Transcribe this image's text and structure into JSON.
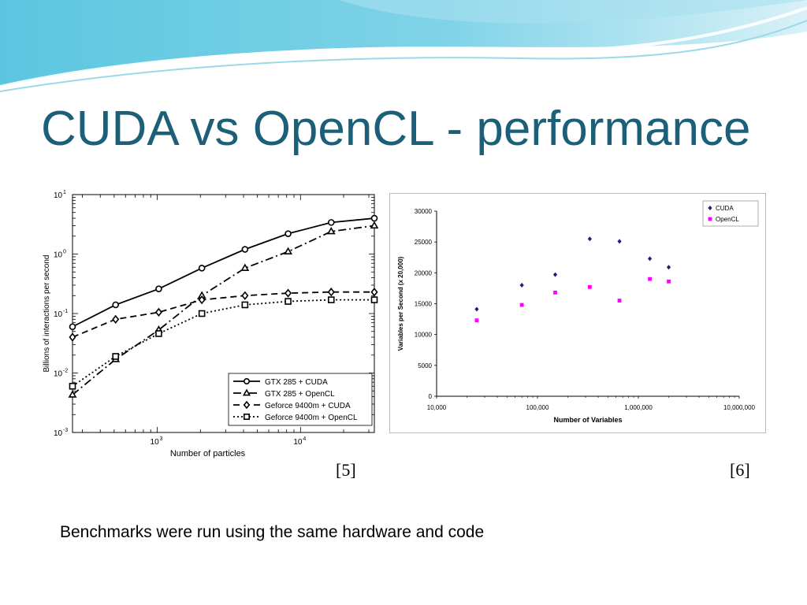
{
  "slide": {
    "title": "CUDA vs OpenCL - performance",
    "ref_left": "[5]",
    "ref_right": "[6]",
    "footnote": "Benchmarks were run using the same hardware and code",
    "colors": {
      "title": "#1b5f79",
      "banner_dark": "#5fc3df",
      "banner_light": "#c9ecf5"
    }
  },
  "chart_data": [
    {
      "type": "line",
      "xlabel": "Number of particles",
      "ylabel": "Billions of interactions per second",
      "xscale": "log",
      "yscale": "log",
      "xlim": [
        256,
        32768
      ],
      "ylim": [
        0.001,
        10
      ],
      "x_ticks": [
        {
          "base": "10",
          "exp": "3",
          "value": 1000
        },
        {
          "base": "10",
          "exp": "4",
          "value": 10000
        }
      ],
      "y_ticks": [
        {
          "base": "10",
          "exp": "1",
          "value": 10
        },
        {
          "base": "10",
          "exp": "0",
          "value": 1
        },
        {
          "base": "10",
          "exp": "-1",
          "value": 0.1
        },
        {
          "base": "10",
          "exp": "-2",
          "value": 0.01
        },
        {
          "base": "10",
          "exp": "-3",
          "value": 0.001
        }
      ],
      "grid": false,
      "legend_position": "bottom-right",
      "x": [
        256,
        512,
        1024,
        2048,
        4096,
        8192,
        16384,
        32768
      ],
      "series": [
        {
          "name": "GTX 285 + CUDA",
          "marker": "circle",
          "dash": "",
          "values": [
            0.06,
            0.14,
            0.26,
            0.58,
            1.2,
            2.2,
            3.4,
            4.0
          ]
        },
        {
          "name": "GTX 285 + OpenCL",
          "marker": "triangle",
          "dash": "10,4,2,4",
          "values": [
            0.0043,
            0.017,
            0.053,
            0.2,
            0.58,
            1.1,
            2.4,
            3.0
          ]
        },
        {
          "name": "Geforce 9400m + CUDA",
          "marker": "diamond",
          "dash": "8,5",
          "values": [
            0.04,
            0.08,
            0.105,
            0.17,
            0.2,
            0.22,
            0.23,
            0.23
          ]
        },
        {
          "name": "Geforce 9400m + OpenCL",
          "marker": "square",
          "dash": "2,3",
          "values": [
            0.006,
            0.019,
            0.046,
            0.1,
            0.14,
            0.16,
            0.17,
            0.17
          ]
        }
      ]
    },
    {
      "type": "scatter",
      "xlabel": "Number of Variables",
      "ylabel": "Variables per Second (x 20,000)",
      "xscale": "log",
      "xlim": [
        10000,
        10000000
      ],
      "ylim": [
        0,
        30000
      ],
      "x_ticks": [
        "10,000",
        "100,000",
        "1,000,000",
        "10,000,000"
      ],
      "y_ticks": [
        "0",
        "5000",
        "10000",
        "15000",
        "20000",
        "25000",
        "30000"
      ],
      "grid": false,
      "legend_position": "top-right",
      "series": [
        {
          "name": "CUDA",
          "color": "#1f1f7a",
          "marker": "diamond",
          "x": [
            25000,
            70000,
            150000,
            330000,
            650000,
            1300000,
            2000000
          ],
          "y": [
            14100,
            18000,
            19700,
            25500,
            25100,
            22300,
            20900
          ]
        },
        {
          "name": "OpenCL",
          "color": "#ff00ff",
          "marker": "square",
          "x": [
            25000,
            70000,
            150000,
            330000,
            650000,
            1300000,
            2000000
          ],
          "y": [
            12300,
            14800,
            16800,
            17700,
            15500,
            19000,
            18600
          ]
        }
      ]
    }
  ]
}
